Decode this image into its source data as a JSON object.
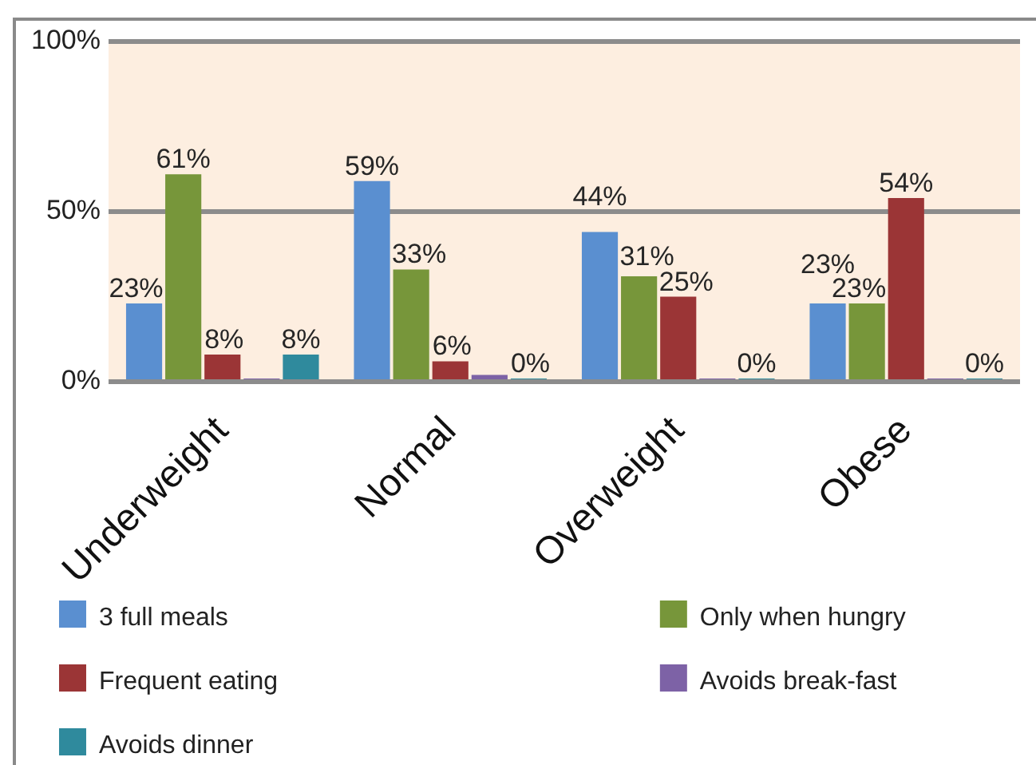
{
  "chart_data": {
    "type": "bar",
    "categories": [
      "Underweight",
      "Normal",
      "Overweight",
      "Obese"
    ],
    "series": [
      {
        "name": "3 full meals",
        "color": "#5a8fd0",
        "values": [
          23,
          59,
          44,
          23
        ],
        "value_labels": [
          "23%",
          "59%",
          "44%",
          "23%"
        ]
      },
      {
        "name": "Only when hungry",
        "color": "#77963a",
        "values": [
          61,
          33,
          31,
          23
        ],
        "value_labels": [
          "61%",
          "33%",
          "31%",
          "23%"
        ]
      },
      {
        "name": "Frequent eating",
        "color": "#9b3536",
        "values": [
          8,
          6,
          25,
          54
        ],
        "value_labels": [
          "8%",
          "6%",
          "25%",
          "54%"
        ]
      },
      {
        "name": "Avoids break-fast",
        "color": "#7d62a6",
        "values": [
          0,
          2,
          0,
          0
        ]
      },
      {
        "name": "Avoids dinner",
        "color": "#2f8a9d",
        "values": [
          8,
          0,
          0,
          0
        ],
        "value_labels": [
          "8%",
          "0%",
          "0%",
          "0%"
        ]
      }
    ],
    "ylim": [
      0,
      100
    ],
    "yticks": [
      {
        "value": 0,
        "label": "0%"
      },
      {
        "value": 50,
        "label": "50%"
      },
      {
        "value": 100,
        "label": "100%"
      }
    ],
    "grid": "y",
    "legend": "bottom"
  }
}
